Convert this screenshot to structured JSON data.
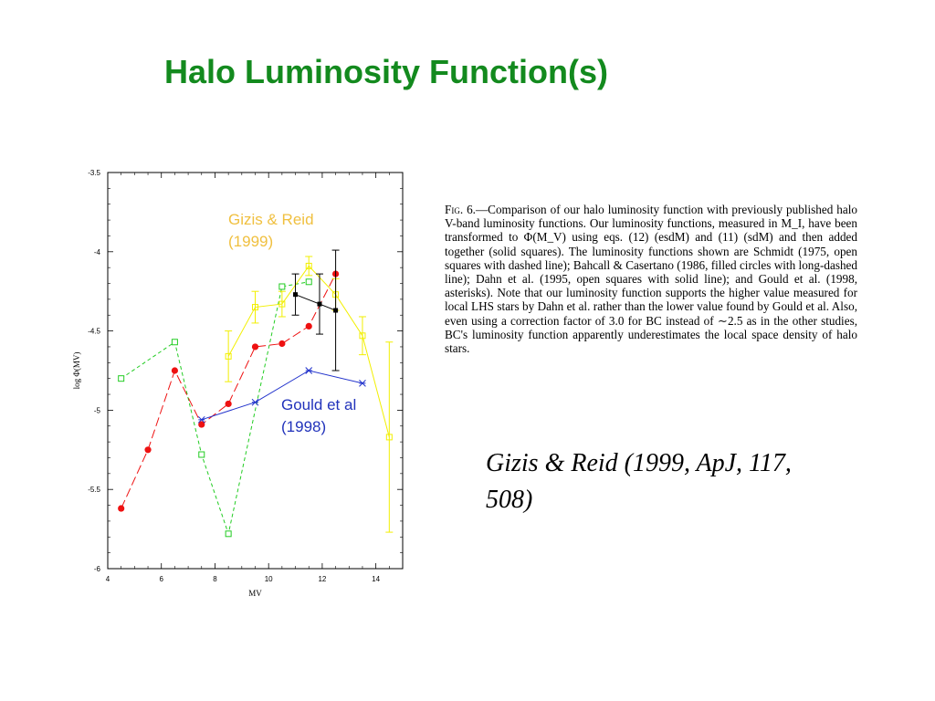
{
  "slide": {
    "title": "Halo Luminosity Function(s)",
    "citation": "Gizis & Reid (1999, ApJ, 117,  508)"
  },
  "caption": {
    "lead": "Fig. 6.",
    "text": "—Comparison of our halo luminosity function with previously published halo V-band luminosity functions. Our luminosity functions, measured in M_I, have been transformed to Φ(M_V) using eqs. (12) (esdM) and (11) (sdM) and then added together (solid squares). The luminosity functions shown are Schmidt (1975, open squares with dashed line); Bahcall & Casertano (1986, filled circles with long-dashed line); Dahn et al. (1995, open squares with solid line); and Gould et al. (1998, asterisks). Note that our luminosity function supports the higher value measured for local LHS stars by Dahn et al. rather than the lower value found by Gould et al. Also, even using a correction factor of 3.0 for BC instead of ∼2.5 as in the other studies, BC's luminosity function apparently underestimates the local space density of halo stars."
  },
  "chart_data": {
    "type": "line",
    "xlabel": "M_V",
    "ylabel": "log Φ(M_V)",
    "xlim": [
      4,
      15
    ],
    "ylim": [
      -6,
      -3.5
    ],
    "xticks": [
      "4",
      "6",
      "8",
      "10",
      "12",
      "14"
    ],
    "yticks": [
      "-3.5",
      "-4",
      "-4.5",
      "-5",
      "-5.5",
      "-6"
    ],
    "annotations": [
      {
        "text": "Gizis & Reid",
        "color": "#f0c040"
      },
      {
        "text": "(1999)",
        "color": "#f0c040"
      },
      {
        "text": "Gould et al",
        "color": "#2233bb"
      },
      {
        "text": "(1998)",
        "color": "#2233bb"
      }
    ],
    "series": [
      {
        "style": "schmidt",
        "color": "#22cc22",
        "x": [
          4.5,
          6.5,
          7.5,
          8.5,
          10.5,
          11.5
        ],
        "y": [
          -4.8,
          -4.57,
          -5.28,
          -5.78,
          -4.22,
          -4.19
        ]
      },
      {
        "style": "bahcall",
        "color": "#ee1111",
        "x": [
          4.5,
          5.5,
          6.5,
          7.5,
          8.5,
          9.5,
          10.5,
          11.5,
          12.5
        ],
        "y": [
          -5.62,
          -5.25,
          -4.75,
          -5.09,
          -4.96,
          -4.6,
          -4.58,
          -4.47,
          -4.14
        ]
      },
      {
        "style": "dahn",
        "color": "#f2ef00",
        "x": [
          8.5,
          9.5,
          10.5,
          11.5,
          12.5,
          13.5,
          14.5
        ],
        "y": [
          -4.66,
          -4.35,
          -4.33,
          -4.09,
          -4.27,
          -4.53,
          -5.17
        ],
        "err": [
          0.16,
          0.1,
          0.08,
          0.06,
          0.1,
          0.12,
          0.6
        ]
      },
      {
        "style": "gould",
        "color": "#2233cc",
        "x": [
          7.5,
          9.5,
          11.5,
          13.5
        ],
        "y": [
          -5.06,
          -4.95,
          -4.75,
          -4.83
        ]
      },
      {
        "style": "gizis",
        "color": "#000000",
        "x": [
          11.0,
          11.9,
          12.5
        ],
        "y": [
          -4.27,
          -4.33,
          -4.37
        ],
        "err": [
          0.13,
          0.19,
          0.38
        ]
      }
    ]
  }
}
